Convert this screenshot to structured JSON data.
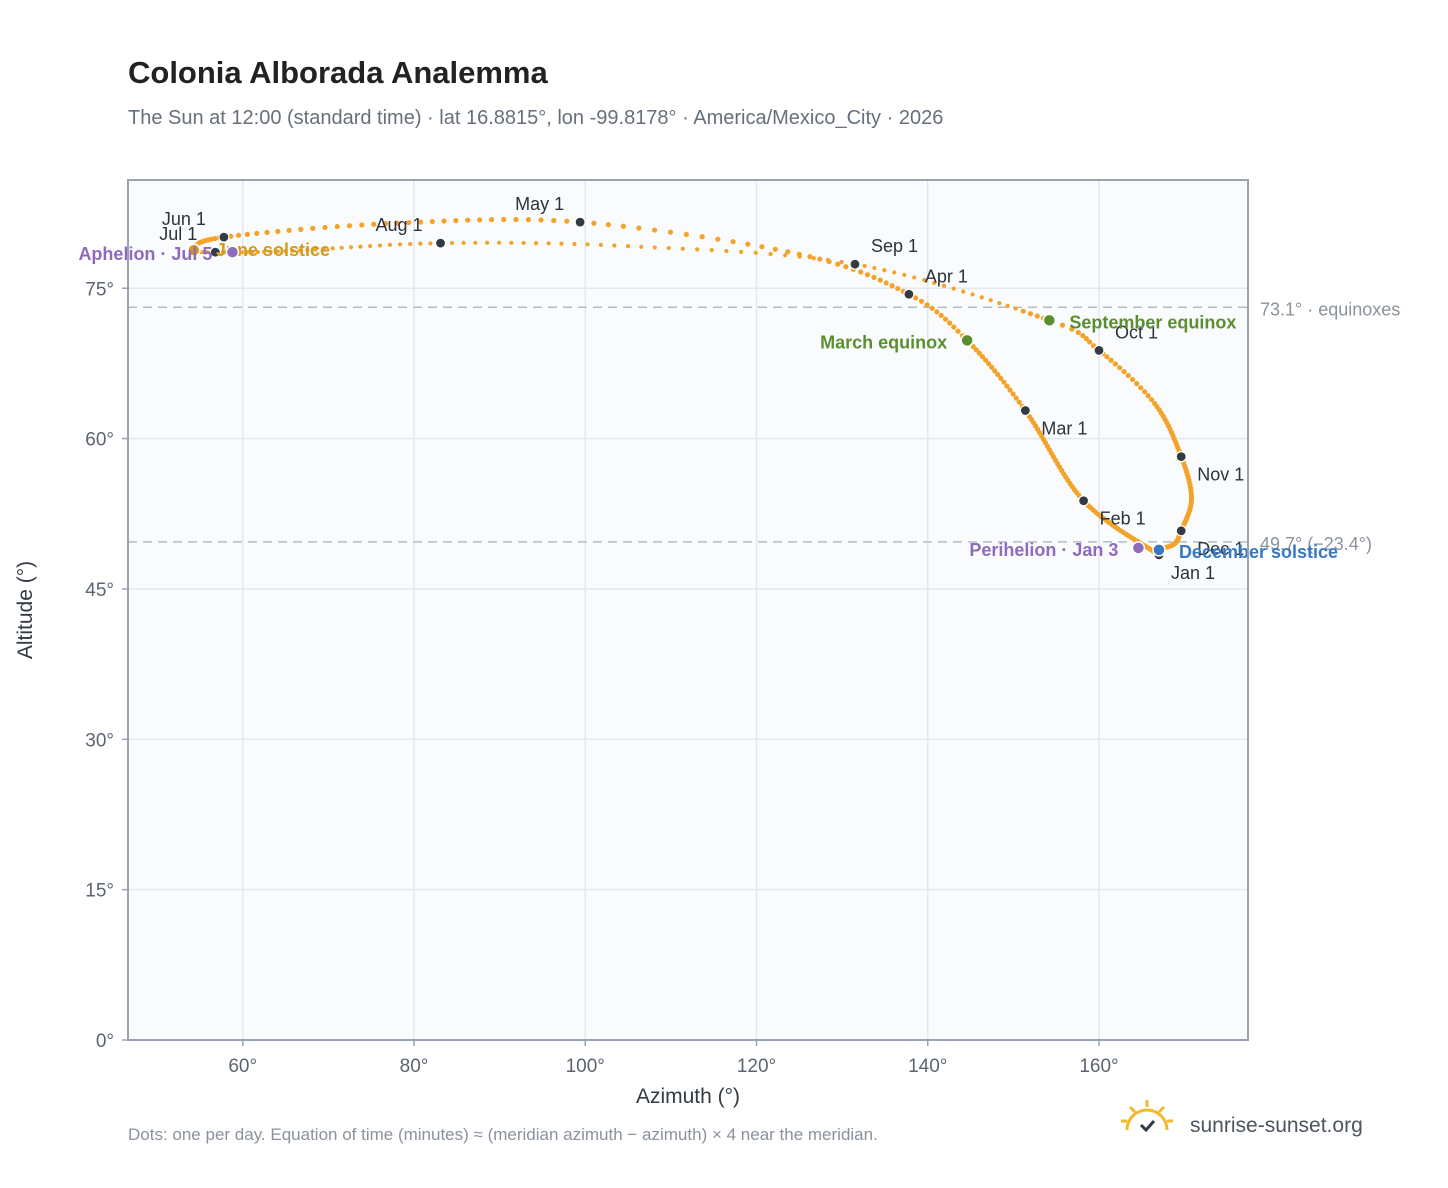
{
  "header": {
    "title": "Colonia Alborada Analemma",
    "subtitle": "The Sun at 12:00 (standard time) · lat 16.8815°, lon -99.8178° · America/Mexico_City · 2026"
  },
  "footer": {
    "note": "Dots: one per day. Equation of time (minutes) ≈ (meridian azimuth − azimuth) × 4 near the meridian.",
    "brand": "sunrise-sunset.org"
  },
  "chart_data": {
    "type": "scatter",
    "xlabel": "Azimuth (°)",
    "ylabel": "Altitude (°)",
    "xlim": [
      46.6,
      177.4
    ],
    "ylim": [
      0,
      85.8
    ],
    "xticks": [
      {
        "value": 60,
        "label": "60°"
      },
      {
        "value": 80,
        "label": "80°"
      },
      {
        "value": 100,
        "label": "100°"
      },
      {
        "value": 120,
        "label": "120°"
      },
      {
        "value": 140,
        "label": "140°"
      },
      {
        "value": 160,
        "label": "160°"
      }
    ],
    "yticks": [
      {
        "value": 0,
        "label": "0°"
      },
      {
        "value": 15,
        "label": "15°"
      },
      {
        "value": 30,
        "label": "30°"
      },
      {
        "value": 45,
        "label": "45°"
      },
      {
        "value": 60,
        "label": "60°"
      },
      {
        "value": 75,
        "label": "75°"
      }
    ],
    "grid": true,
    "colors": {
      "path": "#f3a32a",
      "month_marker": "#343a44",
      "equinox": "#5a8f2e",
      "june_solstice": "#d39a1e",
      "december_solstice": "#3a78c2",
      "apsis": "#8e6bbf",
      "reference": "#b6bcc4",
      "plot_bg": "#f9fbfd",
      "grid": "#e3e8ee",
      "frame": "#98a2b0"
    },
    "months": [
      {
        "label": "Jan 1",
        "az": 167.0,
        "alt": 48.4
      },
      {
        "label": "Feb 1",
        "az": 158.2,
        "alt": 53.8
      },
      {
        "label": "Mar 1",
        "az": 151.4,
        "alt": 62.8
      },
      {
        "label": "Apr 1",
        "az": 137.8,
        "alt": 74.4
      },
      {
        "label": "May 1",
        "az": 99.4,
        "alt": 81.6
      },
      {
        "label": "Jun 1",
        "az": 57.8,
        "alt": 80.1
      },
      {
        "label": "Jul 1",
        "az": 56.8,
        "alt": 78.6
      },
      {
        "label": "Aug 1",
        "az": 83.1,
        "alt": 79.5
      },
      {
        "label": "Sep 1",
        "az": 131.5,
        "alt": 77.4
      },
      {
        "label": "Oct 1",
        "az": 160.0,
        "alt": 68.8
      },
      {
        "label": "Nov 1",
        "az": 169.6,
        "alt": 58.2
      },
      {
        "label": "Dec 1",
        "az": 169.6,
        "alt": 50.8
      }
    ],
    "events": [
      {
        "label": "March equinox",
        "az": 144.6,
        "alt": 69.8,
        "color": "#5a8f2e"
      },
      {
        "label": "September equinox",
        "az": 154.2,
        "alt": 71.8,
        "color": "#5a8f2e"
      },
      {
        "label": "June solstice",
        "az": 54.3,
        "alt": 78.8,
        "color": "#d39a1e"
      },
      {
        "label": "December solstice",
        "az": 167.0,
        "alt": 48.9,
        "color": "#3a78c2"
      },
      {
        "label": "Aphelion · Jul 5",
        "az": 58.8,
        "alt": 78.6,
        "color": "#8e6bbf"
      },
      {
        "label": "Perihelion · Jan 3",
        "az": 164.6,
        "alt": 49.1,
        "color": "#8e6bbf"
      }
    ],
    "reference_lines": [
      {
        "alt": 73.1,
        "label": "73.1° · equinoxes"
      },
      {
        "alt": 49.7,
        "label": "49.7° (−23.4°)"
      }
    ],
    "daily_path": {
      "note_solid_months": "solid from Oct to Jun, dotted Jun to Oct",
      "anchors": [
        {
          "day": 1,
          "az": 167.0,
          "alt": 48.4
        },
        {
          "day": 32,
          "az": 158.2,
          "alt": 53.8
        },
        {
          "day": 60,
          "az": 151.4,
          "alt": 62.8
        },
        {
          "day": 79,
          "az": 144.6,
          "alt": 69.8
        },
        {
          "day": 91,
          "az": 137.8,
          "alt": 74.4
        },
        {
          "day": 106,
          "az": 125.0,
          "alt": 78.4
        },
        {
          "day": 121,
          "az": 99.4,
          "alt": 81.6
        },
        {
          "day": 136,
          "az": 78.0,
          "alt": 81.5
        },
        {
          "day": 152,
          "az": 57.8,
          "alt": 80.1
        },
        {
          "day": 172,
          "az": 54.3,
          "alt": 78.8
        },
        {
          "day": 182,
          "az": 56.8,
          "alt": 78.6
        },
        {
          "day": 196,
          "az": 65.0,
          "alt": 78.7
        },
        {
          "day": 213,
          "az": 83.1,
          "alt": 79.5
        },
        {
          "day": 228,
          "az": 105.0,
          "alt": 79.2
        },
        {
          "day": 244,
          "az": 131.5,
          "alt": 77.4
        },
        {
          "day": 266,
          "az": 154.2,
          "alt": 71.8
        },
        {
          "day": 274,
          "az": 160.0,
          "alt": 68.8
        },
        {
          "day": 288,
          "az": 166.5,
          "alt": 63.5
        },
        {
          "day": 305,
          "az": 169.6,
          "alt": 58.2
        },
        {
          "day": 320,
          "az": 170.8,
          "alt": 54.0
        },
        {
          "day": 335,
          "az": 169.6,
          "alt": 50.8
        },
        {
          "day": 345,
          "az": 168.8,
          "alt": 49.5
        },
        {
          "day": 355,
          "az": 167.0,
          "alt": 48.9
        },
        {
          "day": 366,
          "az": 167.0,
          "alt": 48.4
        }
      ]
    }
  }
}
